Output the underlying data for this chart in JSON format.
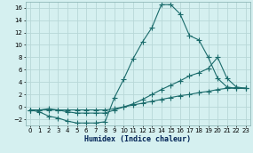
{
  "xlabel": "Humidex (Indice chaleur)",
  "line1_x": [
    0,
    1,
    2,
    3,
    4,
    5,
    6,
    7,
    8,
    9,
    10,
    11,
    12,
    13,
    14,
    15,
    16,
    17,
    18,
    19,
    20,
    21,
    22,
    23
  ],
  "line1_y": [
    -0.5,
    -0.8,
    -1.5,
    -1.8,
    -2.3,
    -2.6,
    -2.6,
    -2.6,
    -2.4,
    1.5,
    4.5,
    7.8,
    10.5,
    12.8,
    16.5,
    16.5,
    15.0,
    11.5,
    10.8,
    8.0,
    4.6,
    3.2,
    3.0,
    3.0
  ],
  "line2_x": [
    0,
    1,
    2,
    3,
    4,
    5,
    6,
    7,
    8,
    9,
    10,
    11,
    12,
    13,
    14,
    15,
    16,
    17,
    18,
    19,
    20,
    21,
    22,
    23
  ],
  "line2_y": [
    -0.5,
    -0.5,
    -0.3,
    -0.5,
    -0.8,
    -1.0,
    -1.0,
    -1.0,
    -1.0,
    -0.5,
    0.0,
    0.5,
    1.2,
    2.0,
    2.8,
    3.5,
    4.2,
    5.0,
    5.5,
    6.2,
    8.0,
    4.6,
    3.2,
    3.0
  ],
  "line3_x": [
    0,
    1,
    2,
    3,
    4,
    5,
    6,
    7,
    8,
    9,
    10,
    11,
    12,
    13,
    14,
    15,
    16,
    17,
    18,
    19,
    20,
    21,
    22,
    23
  ],
  "line3_y": [
    -0.5,
    -0.5,
    -0.5,
    -0.5,
    -0.5,
    -0.5,
    -0.5,
    -0.5,
    -0.5,
    -0.3,
    0.0,
    0.3,
    0.6,
    0.9,
    1.2,
    1.5,
    1.8,
    2.0,
    2.3,
    2.5,
    2.8,
    3.0,
    3.0,
    3.0
  ],
  "line_color": "#1a6b6b",
  "bg_color": "#d5f0f0",
  "grid_color": "#b8d8d8",
  "ylim": [
    -3,
    17
  ],
  "xlim": [
    -0.5,
    23.5
  ],
  "yticks": [
    -2,
    0,
    2,
    4,
    6,
    8,
    10,
    12,
    14,
    16
  ],
  "xticks": [
    0,
    1,
    2,
    3,
    4,
    5,
    6,
    7,
    8,
    9,
    10,
    11,
    12,
    13,
    14,
    15,
    16,
    17,
    18,
    19,
    20,
    21,
    22,
    23
  ],
  "tick_labelsize": 5,
  "xlabel_fontsize": 6,
  "linewidth": 0.8,
  "markersize": 2.0
}
